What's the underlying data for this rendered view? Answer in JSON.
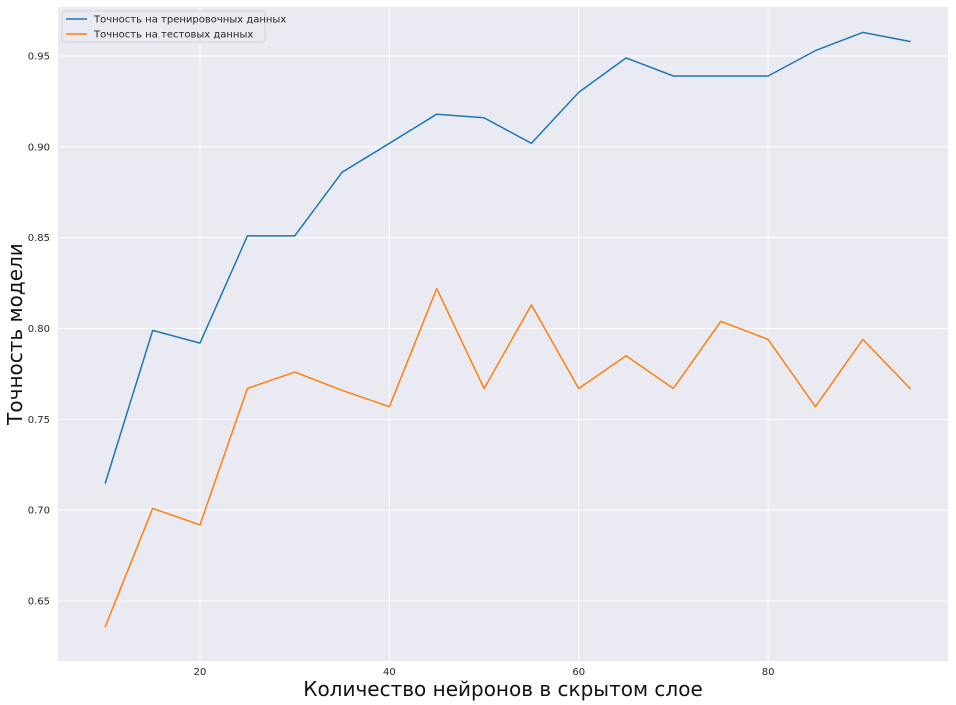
{
  "chart_data": {
    "type": "line",
    "xlabel": "Количество нейронов в скрытом слое",
    "ylabel": "Точность модели",
    "xlim": [
      5,
      99
    ],
    "ylim": [
      0.617,
      0.977
    ],
    "xticks": [
      20,
      40,
      60,
      80
    ],
    "yticks": [
      0.65,
      0.7,
      0.75,
      0.8,
      0.85,
      0.9,
      0.95
    ],
    "grid": true,
    "legend_position": "top-left",
    "x": [
      10,
      15,
      20,
      25,
      30,
      35,
      40,
      45,
      50,
      55,
      60,
      65,
      70,
      75,
      80,
      85,
      90,
      95
    ],
    "series": [
      {
        "name": "Точность на тренировочных данных",
        "color": "#1f77b4",
        "values": [
          0.715,
          0.799,
          0.792,
          0.851,
          0.851,
          0.886,
          0.902,
          0.918,
          0.916,
          0.902,
          0.93,
          0.949,
          0.939,
          0.939,
          0.939,
          0.953,
          0.963,
          0.958
        ]
      },
      {
        "name": "Точность на тестовых данных",
        "color": "#ff7f0e",
        "values": [
          0.636,
          0.701,
          0.692,
          0.767,
          0.776,
          0.766,
          0.757,
          0.822,
          0.767,
          0.813,
          0.767,
          0.785,
          0.767,
          0.804,
          0.794,
          0.757,
          0.794,
          0.767
        ]
      }
    ]
  }
}
